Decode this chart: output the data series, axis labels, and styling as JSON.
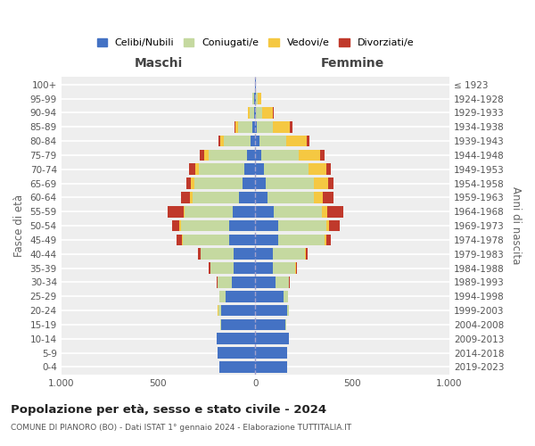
{
  "age_groups": [
    "0-4",
    "5-9",
    "10-14",
    "15-19",
    "20-24",
    "25-29",
    "30-34",
    "35-39",
    "40-44",
    "45-49",
    "50-54",
    "55-59",
    "60-64",
    "65-69",
    "70-74",
    "75-79",
    "80-84",
    "85-89",
    "90-94",
    "95-99",
    "100+"
  ],
  "birth_years": [
    "2019-2023",
    "2014-2018",
    "2009-2013",
    "2004-2008",
    "1999-2003",
    "1994-1998",
    "1989-1993",
    "1984-1988",
    "1979-1983",
    "1974-1978",
    "1969-1973",
    "1964-1968",
    "1959-1963",
    "1954-1958",
    "1949-1953",
    "1944-1948",
    "1939-1943",
    "1934-1938",
    "1929-1933",
    "1924-1928",
    "≤ 1923"
  ],
  "maschi_celibi": [
    185,
    195,
    200,
    175,
    175,
    155,
    120,
    110,
    110,
    135,
    135,
    115,
    85,
    65,
    55,
    45,
    25,
    15,
    5,
    5,
    2
  ],
  "maschi_coniugati": [
    0,
    0,
    0,
    5,
    15,
    30,
    75,
    120,
    170,
    240,
    250,
    250,
    240,
    250,
    235,
    195,
    135,
    72,
    22,
    8,
    1
  ],
  "maschi_vedovi": [
    0,
    0,
    0,
    0,
    5,
    0,
    0,
    0,
    0,
    5,
    5,
    5,
    10,
    15,
    20,
    25,
    20,
    15,
    10,
    2,
    0
  ],
  "maschi_divorziati": [
    0,
    0,
    0,
    0,
    0,
    0,
    5,
    10,
    15,
    25,
    40,
    80,
    50,
    25,
    30,
    20,
    10,
    5,
    0,
    0,
    0
  ],
  "femmine_nubili": [
    165,
    165,
    175,
    155,
    165,
    145,
    105,
    90,
    90,
    120,
    120,
    95,
    65,
    55,
    45,
    30,
    20,
    10,
    5,
    2,
    1
  ],
  "femmine_coniugate": [
    0,
    0,
    0,
    5,
    10,
    25,
    70,
    115,
    165,
    235,
    245,
    250,
    235,
    245,
    230,
    195,
    140,
    80,
    30,
    10,
    1
  ],
  "femmine_vedove": [
    0,
    0,
    0,
    0,
    0,
    0,
    0,
    5,
    5,
    10,
    15,
    25,
    50,
    75,
    90,
    110,
    105,
    90,
    55,
    20,
    2
  ],
  "femmine_divorziate": [
    0,
    0,
    0,
    0,
    0,
    0,
    5,
    5,
    10,
    25,
    55,
    85,
    55,
    30,
    25,
    20,
    15,
    10,
    5,
    0,
    0
  ],
  "color_celibi": "#4472c4",
  "color_coniugati": "#c5d9a0",
  "color_vedovi": "#f5c842",
  "color_divorziati": "#c0392b",
  "xlim": 1000,
  "title": "Popolazione per età, sesso e stato civile - 2024",
  "subtitle": "COMUNE DI PIANORO (BO) - Dati ISTAT 1° gennaio 2024 - Elaborazione TUTTITALIA.IT",
  "header_left": "Maschi",
  "header_right": "Femmine",
  "ylabel_left": "Fasce di età",
  "ylabel_right": "Anni di nascita",
  "legend_labels": [
    "Celibi/Nubili",
    "Coniugati/e",
    "Vedovi/e",
    "Divorziati/e"
  ],
  "xtick_vals": [
    -1000,
    -500,
    0,
    500,
    1000
  ],
  "xtick_labels": [
    "1.000",
    "500",
    "0",
    "500",
    "1.000"
  ]
}
